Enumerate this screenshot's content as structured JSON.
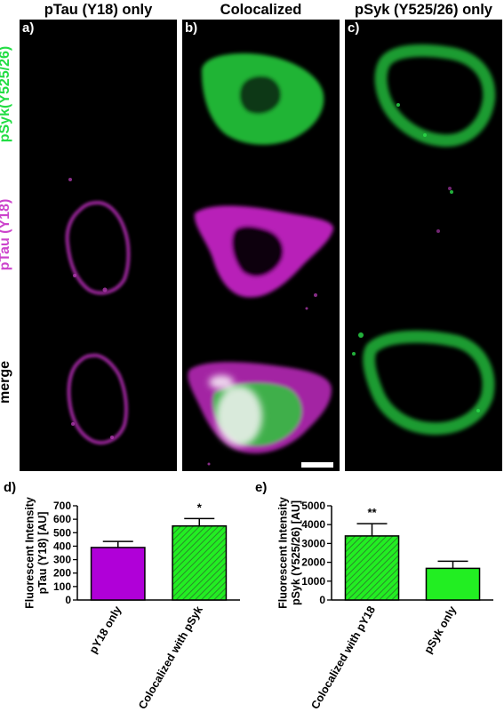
{
  "columns": [
    "pTau (Y18) only",
    "Colocalized",
    "pSyk (Y525/26) only"
  ],
  "panel_labels": [
    "a)",
    "b)",
    "c)"
  ],
  "row_labels": [
    "pSyk(Y525/26)",
    "pTau (Y18)",
    "merge"
  ],
  "colors": {
    "green": "#22dd44",
    "magenta": "#cc33cc",
    "bar_purple": "#b000d8",
    "bar_hatch_green": "#3dbb3d",
    "bar_green": "#22ee22"
  },
  "charts": {
    "d": {
      "label": "d)",
      "ylabel_lines": [
        "Fluorescent Intensity",
        "pTau (Y18) [AU]"
      ],
      "significance": "*"
    },
    "e": {
      "label": "e)",
      "ylabel_lines": [
        "Fluorescent Intensity",
        "pSyk (Y525/26) [AU]"
      ],
      "significance": "**"
    }
  },
  "chart_data": [
    {
      "type": "bar",
      "categories": [
        "pY18 only",
        "Colocalized with pSyk"
      ],
      "values": [
        390,
        550
      ],
      "errors": [
        45,
        55
      ],
      "ylim": [
        0,
        700
      ],
      "yticks": [
        0,
        100,
        200,
        300,
        400,
        500,
        600,
        700
      ],
      "ylabel": "Fluorescent Intensity pTau (Y18) [AU]",
      "annotations": [
        {
          "category": "Colocalized with pSyk",
          "text": "*"
        }
      ]
    },
    {
      "type": "bar",
      "categories": [
        "Colocalized with pY18",
        "pSyk only"
      ],
      "values": [
        3400,
        1680
      ],
      "errors": [
        650,
        380
      ],
      "ylim": [
        0,
        5000
      ],
      "yticks": [
        0,
        1000,
        2000,
        3000,
        4000,
        5000
      ],
      "ylabel": "Fluorescent Intensity pSyk (Y525/26) [AU]",
      "annotations": [
        {
          "category": "Colocalized with pY18",
          "text": "**"
        }
      ]
    }
  ]
}
